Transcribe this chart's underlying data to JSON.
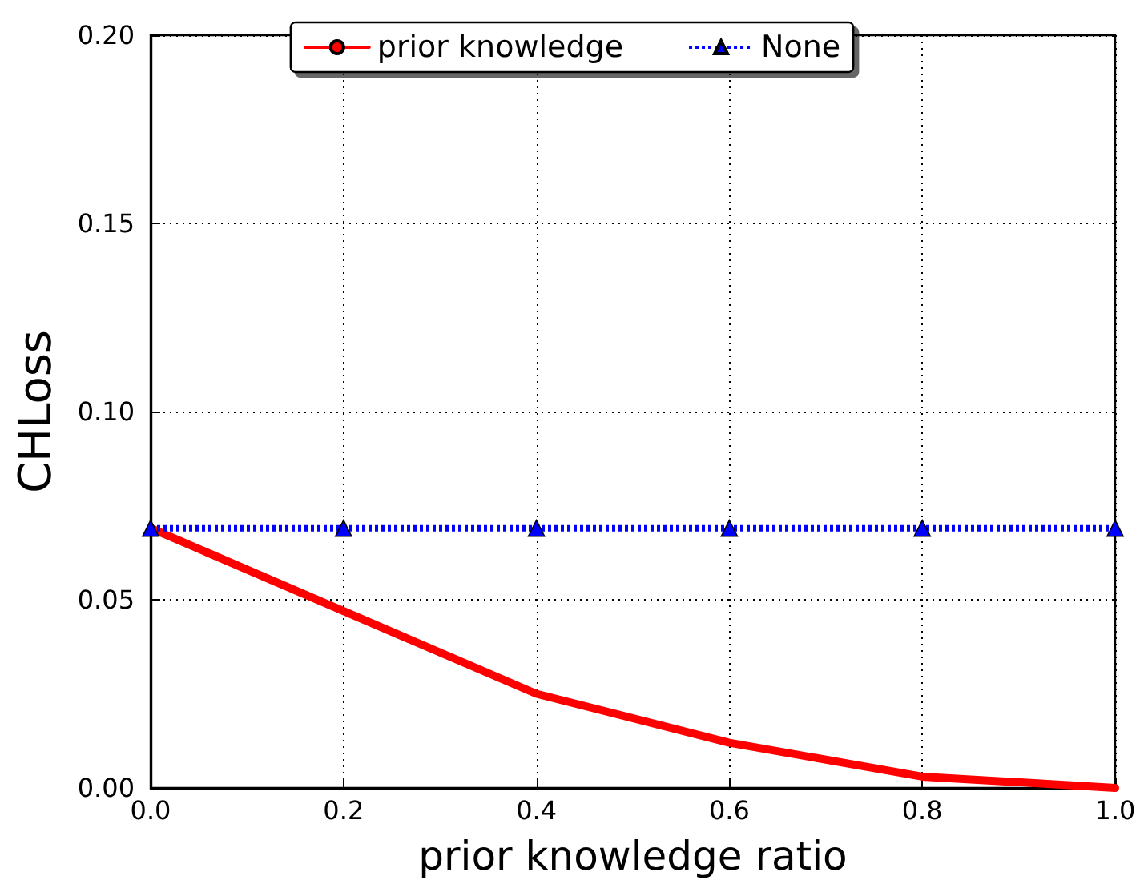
{
  "chart_data": {
    "type": "line",
    "xlabel": "prior knowledge ratio",
    "ylabel": "CHLoss",
    "x": [
      0,
      0.2,
      0.4,
      0.6,
      0.8,
      1.0
    ],
    "series": [
      {
        "name": "prior knowledge",
        "color": "#ff0000",
        "values": [
          0.069,
          0.047,
          0.025,
          0.012,
          0.003,
          0.0
        ],
        "marker": "none",
        "line_style": "solid"
      },
      {
        "name": "None",
        "color": "#0000ff",
        "values": [
          0.069,
          0.069,
          0.069,
          0.069,
          0.069,
          0.069
        ],
        "marker": "triangle",
        "line_style": "dotted"
      }
    ],
    "xlim": [
      0,
      1
    ],
    "xticks": [
      {
        "value": 0,
        "label": "0.0"
      },
      {
        "value": 0.2,
        "label": "0.2"
      },
      {
        "value": 0.4,
        "label": "0.4"
      },
      {
        "value": 0.6,
        "label": "0.6"
      },
      {
        "value": 0.8,
        "label": "0.8"
      },
      {
        "value": 1,
        "label": "1.0"
      }
    ],
    "ylim": [
      0,
      0.2
    ],
    "yticks": [
      {
        "value": 0,
        "label": "0.00"
      },
      {
        "value": 0.05,
        "label": "0.05"
      },
      {
        "value": 0.1,
        "label": "0.10"
      },
      {
        "value": 0.15,
        "label": "0.15"
      },
      {
        "value": 0.2,
        "label": "0.20"
      }
    ],
    "grid": true,
    "legend": "top"
  }
}
